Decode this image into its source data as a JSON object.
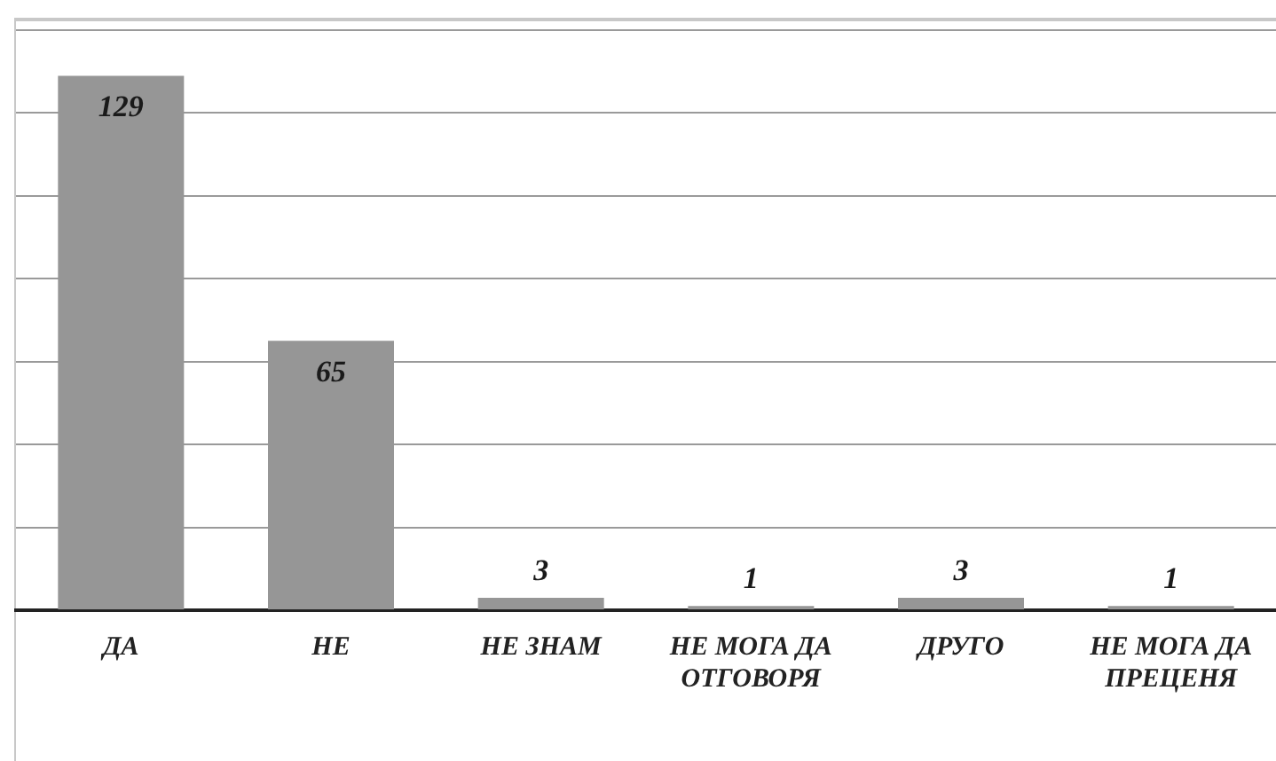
{
  "chart_data": {
    "type": "bar",
    "categories": [
      "ДА",
      "НЕ",
      "НЕ ЗНАМ",
      "НЕ МОГА ДА ОТГОВОРЯ",
      "ДРУГО",
      "НЕ МОГА ДА ПРЕЦЕНЯ"
    ],
    "values": [
      129,
      65,
      3,
      1,
      3,
      1
    ],
    "color": "#969696",
    "ylim": [
      0,
      140
    ],
    "yticks": [
      {
        "value": 0,
        "label": null
      },
      {
        "value": 20,
        "label": null
      },
      {
        "value": 40,
        "label": null
      },
      {
        "value": 60,
        "label": null
      },
      {
        "value": 80,
        "label": null
      },
      {
        "value": 100,
        "label": null
      },
      {
        "value": 120,
        "label": null
      },
      {
        "value": 140,
        "label": null
      }
    ],
    "grid": "y",
    "legend": false,
    "data_labels": true
  }
}
